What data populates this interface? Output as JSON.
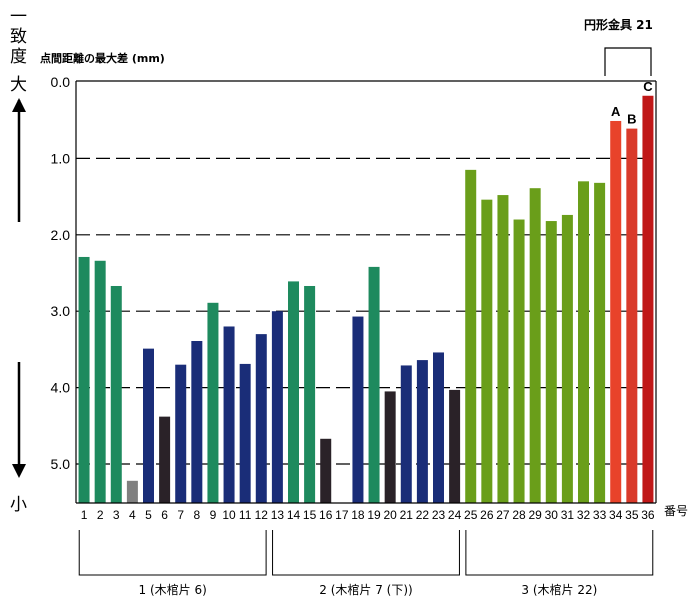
{
  "chart_data": {
    "type": "bar",
    "ylabel": "点間距離の最大差 (mm)",
    "xlabel": "番号",
    "ylim": [
      0,
      5.5
    ],
    "y_inverted": true,
    "yticks": [
      "0.0",
      "1.0",
      "2.0",
      "3.0",
      "4.0",
      "5.0"
    ],
    "grid": "dashed horizontal",
    "categories": [
      "1",
      "2",
      "3",
      "4",
      "5",
      "6",
      "7",
      "8",
      "9",
      "10",
      "11",
      "12",
      "13",
      "14",
      "15",
      "16",
      "17",
      "18",
      "19",
      "20",
      "21",
      "22",
      "23",
      "24",
      "25",
      "26",
      "27",
      "28",
      "29",
      "30",
      "31",
      "32",
      "33",
      "34",
      "35",
      "36"
    ],
    "values": [
      2.29,
      2.34,
      2.67,
      5.22,
      3.49,
      4.38,
      3.7,
      3.39,
      2.89,
      3.2,
      3.69,
      3.3,
      3.0,
      2.61,
      2.67,
      4.67,
      null,
      3.07,
      2.42,
      4.05,
      3.71,
      3.64,
      3.54,
      4.03,
      1.15,
      1.54,
      1.48,
      1.8,
      1.39,
      1.82,
      1.74,
      1.3,
      1.32,
      0.51,
      0.61,
      0.18
    ],
    "bar_colors": [
      "#1e8a5e",
      "#1e8a5e",
      "#1e8a5e",
      "#808080",
      "#1a2d78",
      "#2a2228",
      "#1a2d78",
      "#1a2d78",
      "#1e8a5e",
      "#1a2d78",
      "#1a2d78",
      "#1a2d78",
      "#1a2d78",
      "#1e8a5e",
      "#1e8a5e",
      "#2a2228",
      "#ffffff",
      "#1a2d78",
      "#1e8a5e",
      "#2a2228",
      "#1a2d78",
      "#1a2d78",
      "#1a2d78",
      "#2a2228",
      "#6a9e1a",
      "#6a9e1a",
      "#6a9e1a",
      "#6a9e1a",
      "#6a9e1a",
      "#6a9e1a",
      "#6a9e1a",
      "#6a9e1a",
      "#6a9e1a",
      "#e8432a",
      "#d93a2a",
      "#c01818"
    ],
    "bar_annotations": [
      {
        "index": 33,
        "text": "A"
      },
      {
        "index": 34,
        "text": "B"
      },
      {
        "index": 35,
        "text": "C"
      }
    ],
    "groups": [
      {
        "label": "1 (木棺片 6)",
        "from": 1,
        "to": 12
      },
      {
        "label": "2 (木棺片 7 (下))",
        "from": 13,
        "to": 24
      },
      {
        "label": "3 (木棺片 22)",
        "from": 25,
        "to": 36
      }
    ],
    "top_bracket": {
      "label": "円形金具 21",
      "from": 34,
      "to": 36
    }
  },
  "side_axis": {
    "top_label": "一致度",
    "big_label": "大",
    "small_label": "小"
  }
}
